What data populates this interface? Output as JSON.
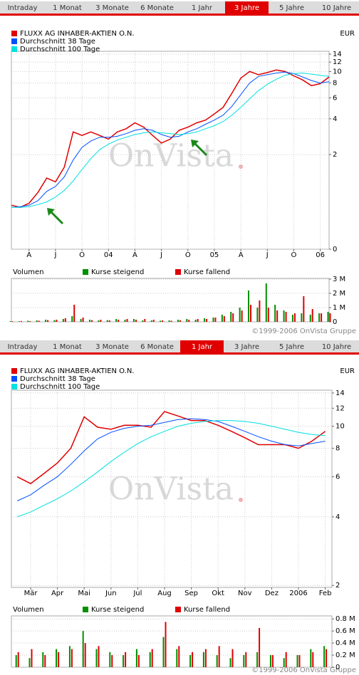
{
  "tab_bars": [
    {
      "tabs": [
        "Intraday",
        "1 Monat",
        "3 Monate",
        "6 Monate",
        "1 Jahr",
        "3 Jahre",
        "5 Jahre",
        "10 Jahre"
      ],
      "active": 5
    },
    {
      "tabs": [
        "Intraday",
        "1 Monat",
        "3 Monate",
        "6 Monate",
        "1 Jahr",
        "3 Jahre",
        "5 Jahre",
        "10 Jahre"
      ],
      "active": 4
    }
  ],
  "watermark": "OnVista",
  "copyright": "©1999-2006 OnVista Gruppe",
  "chart_data": [
    {
      "type": "line",
      "unit": "EUR",
      "log_scale": true,
      "grid": true,
      "categories": [
        null,
        null,
        "A",
        null,
        null,
        "J",
        null,
        null,
        "O",
        null,
        null,
        "04",
        null,
        null,
        "A",
        null,
        null,
        "J",
        null,
        null,
        "O",
        null,
        null,
        "05",
        null,
        null,
        "A",
        null,
        null,
        "J",
        null,
        null,
        "O",
        null,
        null,
        "06",
        null
      ],
      "series": [
        {
          "name": "FLUXX AG INHABER-AKTIEN O.N.",
          "color": "#e00000",
          "values": [
            0.75,
            0.72,
            0.78,
            0.96,
            1.27,
            1.18,
            1.57,
            3.1,
            2.9,
            3.1,
            2.9,
            2.7,
            3.1,
            3.3,
            3.7,
            3.4,
            2.9,
            2.5,
            2.7,
            3.2,
            3.4,
            3.7,
            3.9,
            4.4,
            5.0,
            6.6,
            8.8,
            10.0,
            9.4,
            9.8,
            10.3,
            10.0,
            9.2,
            8.5,
            7.6,
            7.9,
            9.0
          ]
        },
        {
          "name": "Durchschnitt 38 Tage",
          "color": "#0050ff",
          "values": [
            0.72,
            0.73,
            0.75,
            0.82,
            0.98,
            1.08,
            1.3,
            1.8,
            2.3,
            2.6,
            2.8,
            2.8,
            2.85,
            3.0,
            3.2,
            3.3,
            3.2,
            2.95,
            2.8,
            2.85,
            3.1,
            3.3,
            3.6,
            3.9,
            4.3,
            5.1,
            6.4,
            8.0,
            9.1,
            9.4,
            9.7,
            9.9,
            9.6,
            9.0,
            8.4,
            8.0,
            8.2
          ]
        },
        {
          "name": "Durchschnitt 100 Tage",
          "color": "#00e0e0",
          "values": [
            0.72,
            0.72,
            0.73,
            0.76,
            0.8,
            0.88,
            1.0,
            1.2,
            1.5,
            1.85,
            2.2,
            2.45,
            2.65,
            2.8,
            2.95,
            3.05,
            3.1,
            3.05,
            3.0,
            2.95,
            3.0,
            3.1,
            3.3,
            3.5,
            3.8,
            4.3,
            5.0,
            5.9,
            6.9,
            7.8,
            8.6,
            9.3,
            9.6,
            9.7,
            9.5,
            9.3,
            9.1
          ]
        }
      ],
      "ylim": [
        0.32,
        14.8
      ],
      "yticks": [
        {
          "value": 0.32,
          "label": "0"
        },
        2,
        4,
        6,
        8,
        10,
        12,
        14
      ]
    },
    {
      "type": "bar",
      "y_label": "Volumen",
      "grid": true,
      "series": [
        {
          "name": "Kurse steigend",
          "color": "#009000",
          "values": [
            50000,
            40000,
            80000,
            100000,
            150000,
            120000,
            200000,
            400000,
            200000,
            150000,
            100000,
            120000,
            200000,
            150000,
            200000,
            100000,
            100000,
            80000,
            100000,
            150000,
            200000,
            150000,
            250000,
            300000,
            500000,
            700000,
            1000000,
            2200000,
            1000000,
            2700000,
            1200000,
            800000,
            500000,
            600000,
            500000,
            600000,
            700000
          ]
        },
        {
          "name": "Kurse fallend",
          "color": "#e00000",
          "values": [
            40000,
            60000,
            50000,
            80000,
            120000,
            150000,
            250000,
            1200000,
            300000,
            120000,
            150000,
            100000,
            150000,
            200000,
            150000,
            200000,
            150000,
            100000,
            80000,
            120000,
            150000,
            200000,
            200000,
            300000,
            400000,
            600000,
            800000,
            1200000,
            1500000,
            1000000,
            800000,
            700000,
            600000,
            1800000,
            900000,
            600000,
            600000
          ]
        }
      ],
      "ylim": [
        0,
        3050000
      ],
      "yticks": [
        0,
        {
          "value": 1000000,
          "label": "1 M"
        },
        {
          "value": 2000000,
          "label": "2 M"
        },
        {
          "value": 3000000,
          "label": "3 M"
        }
      ]
    },
    {
      "type": "line",
      "unit": "EUR",
      "log_scale": true,
      "grid": true,
      "categories": [
        null,
        "Mär",
        null,
        "Apr",
        null,
        "Mai",
        null,
        "Jun",
        null,
        "Jul",
        null,
        "Aug",
        null,
        "Sep",
        null,
        "Okt",
        null,
        "Nov",
        null,
        "Dez",
        null,
        "2006",
        null,
        "Feb"
      ],
      "series": [
        {
          "name": "FLUXX AG INHABER-AKTIEN O.N.",
          "color": "#e00000",
          "values": [
            6.0,
            5.6,
            6.2,
            6.9,
            8.0,
            11.0,
            9.9,
            9.7,
            10.1,
            10.1,
            9.9,
            11.6,
            11.1,
            10.6,
            10.6,
            10.1,
            9.5,
            8.9,
            8.3,
            8.3,
            8.3,
            8.0,
            8.6,
            9.5
          ]
        },
        {
          "name": "Durchschnitt 38 Tage",
          "color": "#0050ff",
          "values": [
            4.7,
            5.0,
            5.5,
            6.0,
            6.8,
            7.8,
            8.8,
            9.4,
            9.8,
            10.0,
            10.1,
            10.4,
            10.7,
            10.8,
            10.7,
            10.5,
            10.0,
            9.5,
            9.0,
            8.6,
            8.3,
            8.2,
            8.4,
            8.6
          ]
        },
        {
          "name": "Durchschnitt 100 Tage",
          "color": "#00e0e0",
          "values": [
            4.0,
            4.2,
            4.5,
            4.8,
            5.2,
            5.7,
            6.3,
            7.0,
            7.7,
            8.4,
            9.0,
            9.5,
            10.0,
            10.3,
            10.5,
            10.6,
            10.6,
            10.5,
            10.3,
            10.0,
            9.7,
            9.4,
            9.2,
            9.1
          ]
        }
      ],
      "ylim": [
        1.96,
        14.4
      ],
      "yticks": [
        2,
        4,
        6,
        8,
        10,
        12,
        14
      ]
    },
    {
      "type": "bar",
      "y_label": "Volumen",
      "grid": true,
      "series": [
        {
          "name": "Kurse steigend",
          "color": "#009000",
          "values": [
            200000,
            150000,
            250000,
            300000,
            350000,
            600000,
            300000,
            250000,
            200000,
            300000,
            250000,
            500000,
            300000,
            200000,
            250000,
            200000,
            150000,
            200000,
            250000,
            200000,
            150000,
            200000,
            300000,
            350000
          ]
        },
        {
          "name": "Kurse fallend",
          "color": "#e00000",
          "values": [
            250000,
            300000,
            200000,
            250000,
            300000,
            400000,
            350000,
            200000,
            250000,
            200000,
            300000,
            750000,
            350000,
            250000,
            300000,
            350000,
            300000,
            250000,
            650000,
            200000,
            250000,
            200000,
            250000,
            300000
          ]
        }
      ],
      "ylim": [
        0,
        850000
      ],
      "yticks": [
        0,
        {
          "value": 200000,
          "label": "0.2 M"
        },
        {
          "value": 400000,
          "label": "0.4 M"
        },
        {
          "value": 600000,
          "label": "0.6 M"
        },
        {
          "value": 800000,
          "label": "0.8 M"
        }
      ]
    }
  ]
}
